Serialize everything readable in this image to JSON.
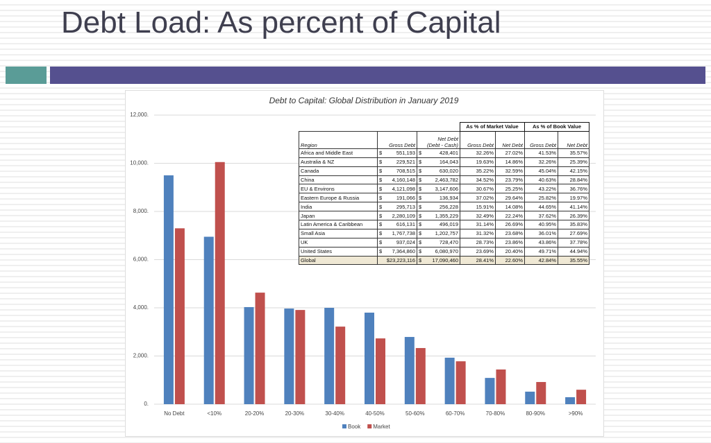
{
  "title": "Debt Load: As percent of Capital",
  "chart_data": {
    "type": "bar",
    "title": "Debt to Capital: Global Distribution in January 2019",
    "categories": [
      "No Debt",
      "<10%",
      "20-20%",
      "20-30%",
      "30-40%",
      "40-50%",
      "50-60%",
      "60-70%",
      "70-80%",
      "80-90%",
      ">90%"
    ],
    "series": [
      {
        "name": "Book",
        "color": "#4f81bd",
        "values": [
          9500,
          6950,
          4030,
          3970,
          4000,
          3800,
          2790,
          1930,
          1090,
          520,
          290
        ]
      },
      {
        "name": "Market",
        "color": "#c0504d",
        "values": [
          7300,
          10050,
          4630,
          3910,
          3220,
          2730,
          2330,
          1780,
          1440,
          920,
          600
        ]
      }
    ],
    "ylim": [
      0,
      12000
    ],
    "yticks": [
      {
        "value": 0,
        "label": "0."
      },
      {
        "value": 2000,
        "label": "2,000."
      },
      {
        "value": 4000,
        "label": "4,000."
      },
      {
        "value": 6000,
        "label": "6,000."
      },
      {
        "value": 8000,
        "label": "8,000."
      },
      {
        "value": 10000,
        "label": "10,000."
      },
      {
        "value": 12000,
        "label": "12,000."
      }
    ],
    "grid": true,
    "legend": "bottom"
  },
  "table": {
    "group_headers": [
      "As % of Market Value",
      "As % of Book Value"
    ],
    "columns": [
      "Region",
      "Gross Debt",
      "Net Debt\n(Debt - Cash)",
      "Gross Debt",
      "Net Debt",
      "Gross Debt",
      "Net Debt"
    ],
    "rows": [
      [
        "Africa and Middle East",
        "$ 551,193",
        "$ 428,401",
        "32.26%",
        "27.02%",
        "41.53%",
        "35.57%"
      ],
      [
        "Australia & NZ",
        "$ 229,521",
        "$ 164,043",
        "19.63%",
        "14.86%",
        "32.26%",
        "25.39%"
      ],
      [
        "Canada",
        "$ 708,515",
        "$ 630,020",
        "35.22%",
        "32.59%",
        "45.04%",
        "42.15%"
      ],
      [
        "China",
        "$ 4,160,148",
        "$ 2,463,782",
        "34.52%",
        "23.79%",
        "40.63%",
        "28.84%"
      ],
      [
        "EU & Environs",
        "$ 4,121,098",
        "$ 3,147,606",
        "30.67%",
        "25.25%",
        "43.22%",
        "36.76%"
      ],
      [
        "Eastern Europe & Russia",
        "$ 191,066",
        "$ 136,934",
        "37.02%",
        "29.64%",
        "25.82%",
        "19.97%"
      ],
      [
        "India",
        "$ 295,713",
        "$ 256,228",
        "15.91%",
        "14.08%",
        "44.65%",
        "41.14%"
      ],
      [
        "Japan",
        "$ 2,280,109",
        "$ 1,355,229",
        "32.49%",
        "22.24%",
        "37.62%",
        "26.39%"
      ],
      [
        "Latin America & Caribbean",
        "$ 616,131",
        "$ 496,019",
        "31.14%",
        "26.69%",
        "40.95%",
        "35.83%"
      ],
      [
        "Small Asia",
        "$ 1,767,738",
        "$ 1,202,757",
        "31.32%",
        "23.68%",
        "36.01%",
        "27.69%"
      ],
      [
        "UK",
        "$ 937,024",
        "$ 728,470",
        "28.73%",
        "23.86%",
        "43.86%",
        "37.78%"
      ],
      [
        "United States",
        "$ 7,364,860",
        "$ 6,080,970",
        "23.69%",
        "20.40%",
        "49.71%",
        "44.94%"
      ],
      [
        "Global",
        "$23,223,116",
        "$ 17,090,460",
        "28.41%",
        "22.60%",
        "42.84%",
        "35.55%"
      ]
    ]
  }
}
